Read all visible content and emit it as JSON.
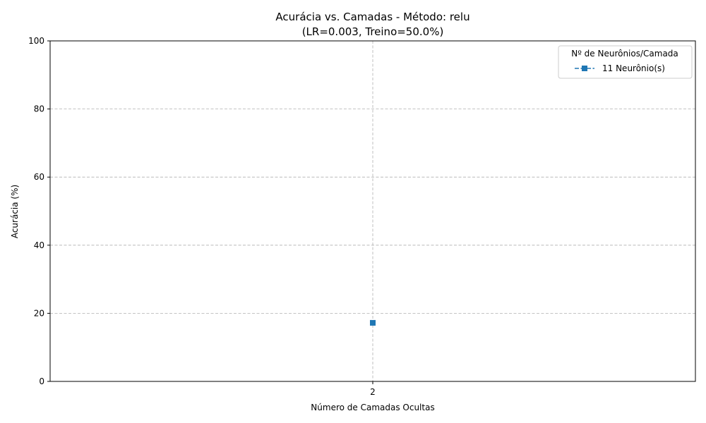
{
  "chart_data": {
    "type": "line",
    "title_line1": "Acurácia vs. Camadas - Método: relu",
    "title_line2": "(LR=0.003, Treino=50.0%)",
    "xlabel": "Número de Camadas Ocultas",
    "ylabel": "Acurácia (%)",
    "x": [
      2
    ],
    "xticks": [
      "2"
    ],
    "ylim": [
      0,
      100
    ],
    "yticks": [
      0,
      20,
      40,
      60,
      80,
      100
    ],
    "grid": true,
    "legend_title": "Nº de Neurônios/Camada",
    "legend_position": "top-right",
    "series": [
      {
        "name": "11 Neurônio(s)",
        "values": [
          17.2
        ],
        "color": "#1f77b4",
        "marker": "square",
        "linestyle": "dashed"
      }
    ]
  }
}
